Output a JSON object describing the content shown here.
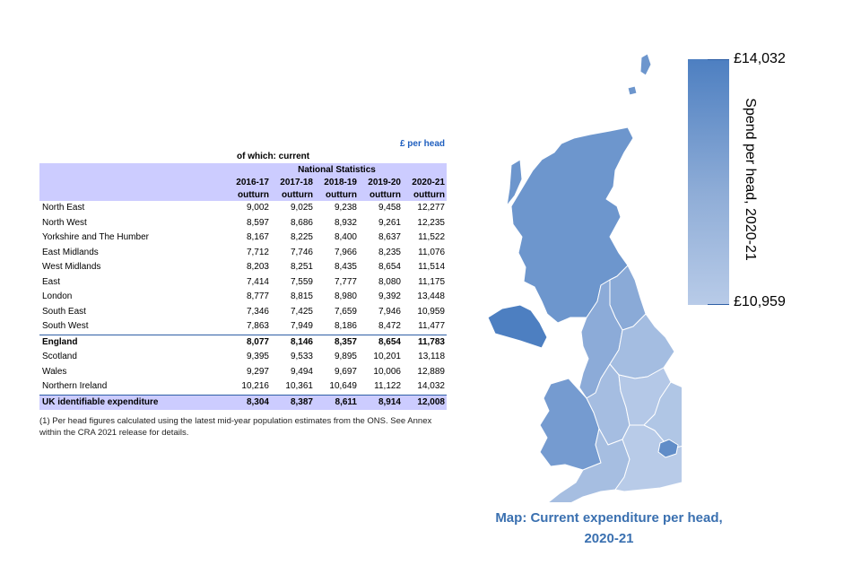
{
  "table": {
    "unit_note": "£ per head",
    "sub_note": "of which: current",
    "band_label": "National Statistics",
    "years": [
      "2016-17",
      "2017-18",
      "2018-19",
      "2019-20",
      "2020-21"
    ],
    "outturn_label": "outturn",
    "rows": [
      {
        "label": "North East",
        "values": [
          "9,002",
          "9,025",
          "9,238",
          "9,458",
          "12,277"
        ]
      },
      {
        "label": "North West",
        "values": [
          "8,597",
          "8,686",
          "8,932",
          "9,261",
          "12,235"
        ]
      },
      {
        "label": "Yorkshire and The Humber",
        "values": [
          "8,167",
          "8,225",
          "8,400",
          "8,637",
          "11,522"
        ]
      },
      {
        "label": "East Midlands",
        "values": [
          "7,712",
          "7,746",
          "7,966",
          "8,235",
          "11,076"
        ]
      },
      {
        "label": "West Midlands",
        "values": [
          "8,203",
          "8,251",
          "8,435",
          "8,654",
          "11,514"
        ]
      },
      {
        "label": "East",
        "values": [
          "7,414",
          "7,559",
          "7,777",
          "8,080",
          "11,175"
        ]
      },
      {
        "label": "London",
        "values": [
          "8,777",
          "8,815",
          "8,980",
          "9,392",
          "13,448"
        ]
      },
      {
        "label": "South East",
        "values": [
          "7,346",
          "7,425",
          "7,659",
          "7,946",
          "10,959"
        ]
      },
      {
        "label": "South West",
        "values": [
          "7,863",
          "7,949",
          "8,186",
          "8,472",
          "11,477"
        ]
      },
      {
        "label": "England",
        "values": [
          "8,077",
          "8,146",
          "8,357",
          "8,654",
          "11,783"
        ],
        "style": "england"
      },
      {
        "label": "Scotland",
        "values": [
          "9,395",
          "9,533",
          "9,895",
          "10,201",
          "13,118"
        ]
      },
      {
        "label": "Wales",
        "values": [
          "9,297",
          "9,494",
          "9,697",
          "10,006",
          "12,889"
        ]
      },
      {
        "label": "Northern Ireland",
        "values": [
          "10,216",
          "10,361",
          "10,649",
          "11,122",
          "14,032"
        ]
      },
      {
        "label": "UK identifiable expenditure",
        "values": [
          "8,304",
          "8,387",
          "8,611",
          "8,914",
          "12,008"
        ],
        "style": "total"
      }
    ],
    "footnote": "(1) Per head figures calculated using the latest mid-year population estimates from the ONS. See Annex within the CRA 2021 release for details."
  },
  "chart_data": {
    "type": "table",
    "title": "Map: Current expenditure per head, 2020-21",
    "legend_title": "Spend per head, 2020-21",
    "legend_max_label": "£14,032",
    "legend_min_label": "£10,959",
    "scale": [
      10959,
      14032
    ],
    "legend_placement": "right",
    "colors": {
      "high": "#4d7fc1",
      "low": "#b8cbe8"
    },
    "regions": [
      {
        "name": "Scotland",
        "value": 13118
      },
      {
        "name": "Northern Ireland",
        "value": 14032
      },
      {
        "name": "North East",
        "value": 12277
      },
      {
        "name": "North West",
        "value": 12235
      },
      {
        "name": "Yorkshire and The Humber",
        "value": 11522
      },
      {
        "name": "Wales",
        "value": 12889
      },
      {
        "name": "West Midlands",
        "value": 11514
      },
      {
        "name": "East Midlands",
        "value": 11076
      },
      {
        "name": "East",
        "value": 11175
      },
      {
        "name": "London",
        "value": 13448
      },
      {
        "name": "South East",
        "value": 10959
      },
      {
        "name": "South West",
        "value": 11477
      }
    ]
  }
}
